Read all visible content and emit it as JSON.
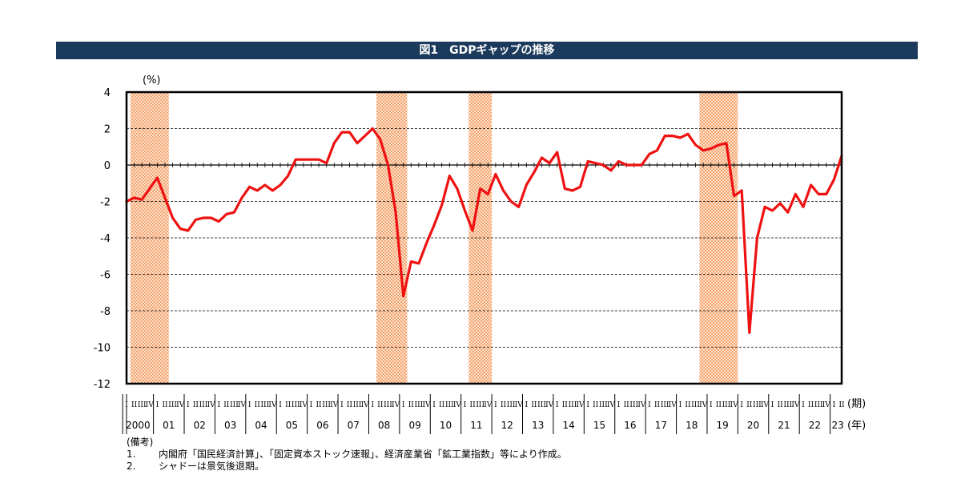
{
  "chart_data": {
    "type": "line",
    "title": "図1　GDPギャップの推移",
    "ylabel": "(%)",
    "xlabel_unit_quarter": "(期)",
    "xlabel_unit_year": "(年)",
    "ylim": [
      -12,
      4
    ],
    "yticks": [
      4,
      2,
      0,
      -2,
      -4,
      -6,
      -8,
      -10,
      -12
    ],
    "grid": "dashed horizontal",
    "quarter_labels": [
      "I",
      "II",
      "III",
      "IV"
    ],
    "year_labels": [
      "2000",
      "01",
      "02",
      "03",
      "04",
      "05",
      "06",
      "07",
      "08",
      "09",
      "10",
      "11",
      "12",
      "13",
      "14",
      "15",
      "16",
      "17",
      "18",
      "19",
      "20",
      "21",
      "22",
      "23"
    ],
    "series_color": "#ee1111",
    "recession_color": "#f5a36e",
    "recession_periods_quarter_index": [
      [
        1,
        5
      ],
      [
        33,
        36
      ],
      [
        45,
        47
      ],
      [
        75,
        79
      ]
    ],
    "series": [
      {
        "values": [
          -2.0,
          -1.8,
          -1.9,
          -1.3,
          -0.7,
          -1.8,
          -2.9,
          -3.5,
          -3.6,
          -3.0,
          -2.9,
          -2.9,
          -3.1,
          -2.7,
          -2.6,
          -1.8,
          -1.2,
          -1.4,
          -1.1,
          -1.4,
          -1.1,
          -0.6,
          0.3,
          0.3,
          0.3,
          0.3,
          0.1,
          1.2,
          1.8,
          1.8,
          1.2,
          1.6,
          2.0,
          1.4,
          0.0,
          -2.6,
          -7.2,
          -5.3,
          -5.4,
          -4.3,
          -3.3,
          -2.2,
          -0.6,
          -1.3,
          -2.5,
          -3.6,
          -1.3,
          -1.6,
          -0.5,
          -1.4,
          -2.0,
          -2.3,
          -1.1,
          -0.4,
          0.4,
          0.1,
          0.7,
          -1.3,
          -1.4,
          -1.2,
          0.2,
          0.1,
          0.0,
          -0.3,
          0.2,
          0.0,
          0.0,
          0.0,
          0.6,
          0.8,
          1.6,
          1.6,
          1.5,
          1.7,
          1.1,
          0.8,
          0.9,
          1.1,
          1.2,
          -1.7,
          -1.4,
          -9.2,
          -4.0,
          -2.3,
          -2.5,
          -2.1,
          -2.6,
          -1.6,
          -2.3,
          -1.1,
          -1.6,
          -1.6,
          -0.8,
          0.5
        ]
      }
    ]
  },
  "notes": {
    "heading": "(備考)",
    "items": [
      {
        "num": "1.",
        "text": "内閣府「国民経済計算」、「固定資本ストック速報」、経済産業省「鉱工業指数」等により作成。"
      },
      {
        "num": "2.",
        "text": "シャドーは景気後退期。"
      }
    ]
  }
}
